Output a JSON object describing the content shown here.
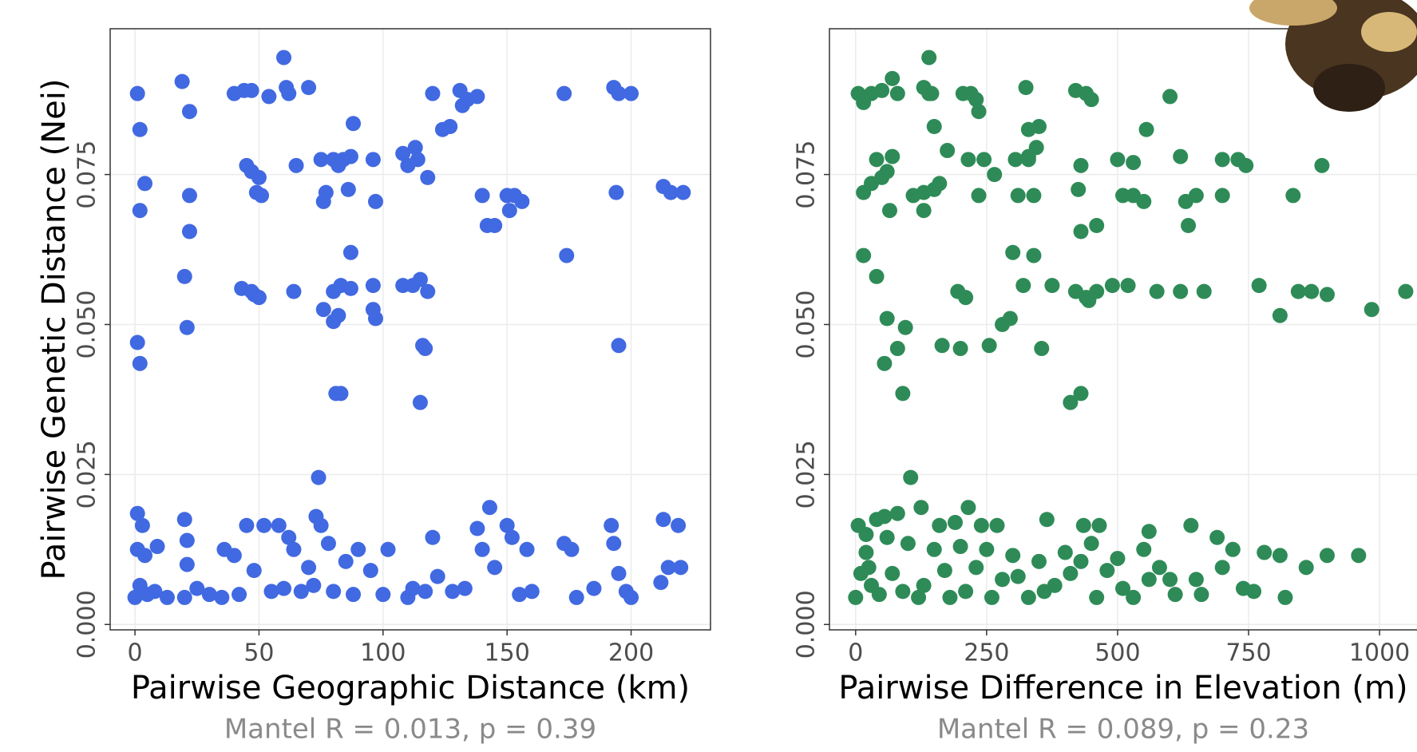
{
  "chart_data": [
    {
      "type": "scatter",
      "color": "#4169e1",
      "xlabel": "Pairwise Geographic Distance (km)",
      "ylabel": "Pairwise Genetic Distance (Nei)",
      "annotation": "Mantel R = 0.013, p = 0.39",
      "xlim": [
        -10,
        232
      ],
      "ylim": [
        -0.0009,
        0.0993
      ],
      "xticks": [
        0,
        50,
        100,
        150,
        200
      ],
      "yticks": [
        {
          "value": 0,
          "label": "0.000"
        },
        0.025,
        {
          "value": 0.05,
          "label": "0.050"
        },
        0.075
      ],
      "grid": true,
      "x": [
        1,
        2,
        4,
        2,
        1,
        2,
        19,
        22,
        22,
        22,
        20,
        21,
        40,
        44,
        47,
        45,
        47,
        50,
        49,
        51,
        43,
        47,
        48,
        50,
        54,
        60,
        61,
        62,
        70,
        65,
        64,
        75,
        76,
        77,
        80,
        82,
        84,
        87,
        86,
        88,
        87,
        76,
        80,
        82,
        80,
        83,
        87,
        81,
        83,
        96,
        97,
        96,
        96,
        97,
        108,
        110,
        113,
        114,
        118,
        120,
        108,
        112,
        115,
        118,
        116,
        117,
        115,
        124,
        127,
        131,
        132,
        134,
        138,
        140,
        142,
        145,
        150,
        153,
        151,
        156,
        173,
        174,
        193,
        195,
        200,
        194,
        195,
        213,
        216,
        221,
        1,
        3,
        1,
        4,
        9,
        2,
        5,
        0,
        8,
        13,
        20,
        21,
        21,
        20,
        36,
        40,
        45,
        52,
        48,
        42,
        55,
        58,
        62,
        64,
        70,
        74,
        73,
        75,
        78,
        72,
        80,
        85,
        90,
        95,
        100,
        102,
        110,
        112,
        120,
        122,
        128,
        138,
        140,
        143,
        145,
        150,
        152,
        158,
        155,
        173,
        176,
        178,
        185,
        192,
        193,
        195,
        198,
        213,
        219,
        215,
        220,
        212,
        60,
        67,
        88,
        133,
        35,
        117,
        160,
        200,
        25,
        30
      ],
      "values": [
        0.0885,
        0.0825,
        0.0735,
        0.069,
        0.047,
        0.0435,
        0.0905,
        0.0855,
        0.0715,
        0.0655,
        0.058,
        0.0495,
        0.0885,
        0.089,
        0.089,
        0.0765,
        0.0755,
        0.0745,
        0.072,
        0.0715,
        0.056,
        0.0555,
        0.055,
        0.0545,
        0.088,
        0.0945,
        0.0895,
        0.0885,
        0.0895,
        0.0765,
        0.0555,
        0.0775,
        0.0705,
        0.072,
        0.0775,
        0.0765,
        0.0775,
        0.078,
        0.0725,
        0.0835,
        0.062,
        0.0525,
        0.0505,
        0.0515,
        0.0555,
        0.0565,
        0.056,
        0.0385,
        0.0385,
        0.0775,
        0.0705,
        0.0565,
        0.0525,
        0.051,
        0.0785,
        0.0765,
        0.0795,
        0.0775,
        0.0745,
        0.0885,
        0.0565,
        0.0565,
        0.0575,
        0.0555,
        0.0465,
        0.046,
        0.037,
        0.0825,
        0.083,
        0.089,
        0.0865,
        0.0875,
        0.088,
        0.0715,
        0.0665,
        0.0665,
        0.0715,
        0.0715,
        0.069,
        0.0705,
        0.0885,
        0.0615,
        0.0895,
        0.0885,
        0.0885,
        0.072,
        0.0465,
        0.073,
        0.072,
        0.072,
        0.0185,
        0.0165,
        0.0125,
        0.0115,
        0.013,
        0.0065,
        0.005,
        0.0045,
        0.0055,
        0.0045,
        0.0175,
        0.014,
        0.01,
        0.0045,
        0.0125,
        0.0115,
        0.0165,
        0.0165,
        0.009,
        0.005,
        0.0055,
        0.0165,
        0.0145,
        0.0125,
        0.0095,
        0.0245,
        0.018,
        0.0165,
        0.0135,
        0.0065,
        0.0055,
        0.0105,
        0.0125,
        0.009,
        0.005,
        0.0125,
        0.0045,
        0.006,
        0.0145,
        0.008,
        0.0055,
        0.016,
        0.0125,
        0.0195,
        0.0095,
        0.0165,
        0.0145,
        0.0125,
        0.005,
        0.0135,
        0.0125,
        0.0045,
        0.006,
        0.0165,
        0.0135,
        0.0085,
        0.0055,
        0.0175,
        0.0165,
        0.0095,
        0.0095,
        0.007,
        0.006,
        0.0055,
        0.005,
        0.006,
        0.0045,
        0.0055,
        0.0055,
        0.0045,
        0.006,
        0.005
      ]
    },
    {
      "type": "scatter",
      "color": "#2e8b57",
      "xlabel": "Pairwise Difference in Elevation (m)",
      "annotation": "Mantel R = 0.089, p = 0.23",
      "xlim": [
        -50,
        1073
      ],
      "ylim": [
        -0.0009,
        0.0993
      ],
      "xticks": [
        0,
        250,
        500,
        750,
        1000
      ],
      "yticks": [
        {
          "value": 0,
          "label": "0.000"
        },
        0.025,
        {
          "value": 0.05,
          "label": "0.050"
        },
        0.075
      ],
      "grid": true,
      "x": [
        5,
        15,
        30,
        50,
        70,
        80,
        130,
        140,
        145,
        140,
        150,
        205,
        220,
        230,
        235,
        325,
        420,
        440,
        450,
        600,
        330,
        350,
        330,
        175,
        15,
        30,
        40,
        50,
        60,
        70,
        65,
        110,
        130,
        130,
        150,
        160,
        215,
        245,
        265,
        235,
        305,
        330,
        345,
        310,
        340,
        430,
        425,
        430,
        460,
        500,
        530,
        510,
        530,
        550,
        555,
        620,
        630,
        650,
        635,
        700,
        730,
        745,
        835,
        890,
        700,
        15,
        40,
        60,
        95,
        80,
        55,
        90,
        165,
        200,
        255,
        280,
        295,
        300,
        340,
        320,
        375,
        420,
        440,
        460,
        490,
        520,
        575,
        620,
        665,
        770,
        810,
        845,
        870,
        900,
        985,
        1050,
        355,
        410,
        430,
        195,
        210,
        445,
        5,
        20,
        40,
        55,
        80,
        105,
        125,
        160,
        190,
        215,
        240,
        270,
        365,
        435,
        465,
        560,
        640,
        690,
        720,
        780,
        810,
        860,
        900,
        960,
        820,
        760,
        700,
        660,
        600,
        550,
        500,
        450,
        400,
        350,
        300,
        250,
        200,
        150,
        100,
        60,
        20,
        10,
        30,
        0,
        45,
        90,
        130,
        170,
        210,
        260,
        310,
        360,
        410,
        460,
        510,
        560,
        610,
        650,
        740,
        120,
        230,
        380,
        480,
        25,
        70,
        180,
        330,
        530,
        580,
        430,
        280
      ],
      "values": [
        0.0885,
        0.087,
        0.0885,
        0.089,
        0.091,
        0.0885,
        0.0895,
        0.0885,
        0.0885,
        0.0945,
        0.083,
        0.0885,
        0.0885,
        0.0875,
        0.0855,
        0.0895,
        0.089,
        0.0885,
        0.0875,
        0.088,
        0.0825,
        0.083,
        0.078,
        0.079,
        0.072,
        0.0735,
        0.0775,
        0.0745,
        0.0755,
        0.078,
        0.069,
        0.0715,
        0.072,
        0.069,
        0.0725,
        0.0735,
        0.0775,
        0.0775,
        0.075,
        0.0715,
        0.0775,
        0.0775,
        0.0795,
        0.0715,
        0.0715,
        0.0765,
        0.0725,
        0.0655,
        0.0665,
        0.0775,
        0.077,
        0.0715,
        0.0715,
        0.0705,
        0.0825,
        0.078,
        0.0705,
        0.0715,
        0.0665,
        0.0775,
        0.0775,
        0.0765,
        0.0715,
        0.0765,
        0.0715,
        0.0615,
        0.058,
        0.051,
        0.0495,
        0.046,
        0.0435,
        0.0385,
        0.0465,
        0.046,
        0.0465,
        0.05,
        0.051,
        0.062,
        0.0615,
        0.0565,
        0.0565,
        0.0555,
        0.0545,
        0.0555,
        0.0565,
        0.0565,
        0.0555,
        0.0555,
        0.0555,
        0.0565,
        0.0515,
        0.0555,
        0.0555,
        0.055,
        0.0525,
        0.0555,
        0.046,
        0.037,
        0.0385,
        0.0555,
        0.0545,
        0.054,
        0.0165,
        0.015,
        0.0175,
        0.018,
        0.0185,
        0.0245,
        0.0195,
        0.0165,
        0.017,
        0.0195,
        0.0165,
        0.0165,
        0.0175,
        0.0165,
        0.0165,
        0.0155,
        0.0165,
        0.0145,
        0.0125,
        0.012,
        0.0115,
        0.0095,
        0.0115,
        0.0115,
        0.0045,
        0.0055,
        0.0095,
        0.005,
        0.0075,
        0.0125,
        0.011,
        0.0135,
        0.012,
        0.0105,
        0.0115,
        0.0125,
        0.013,
        0.0125,
        0.0135,
        0.0145,
        0.012,
        0.0085,
        0.0065,
        0.0045,
        0.005,
        0.0055,
        0.0065,
        0.009,
        0.0055,
        0.0045,
        0.008,
        0.0055,
        0.0085,
        0.0045,
        0.006,
        0.0075,
        0.005,
        0.0075,
        0.006,
        0.0045,
        0.0095,
        0.0065,
        0.009,
        0.0095,
        0.0085,
        0.0045,
        0.0045,
        0.0045,
        0.0095,
        0.0105,
        0.0075
      ]
    }
  ]
}
